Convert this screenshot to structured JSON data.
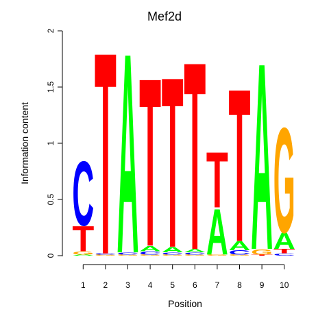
{
  "colors": {
    "A": "#00ff00",
    "C": "#0000ff",
    "G": "#ffa500",
    "T": "#ff0000"
  },
  "chart_data": {
    "type": "sequence-logo",
    "title": "Mef2d",
    "xlabel": "Position",
    "ylabel": "Information content",
    "ylim": [
      0,
      2
    ],
    "y_ticks": [
      "0",
      "0.5",
      "1",
      "1.5",
      "2"
    ],
    "y_tick_values": [
      0,
      0.5,
      1,
      1.5,
      2
    ],
    "x_tick_labels": [
      "1",
      "2",
      "3",
      "4",
      "5",
      "6",
      "7",
      "8",
      "9",
      "10"
    ],
    "grid": false,
    "legend": "none",
    "positions": [
      {
        "position": 1,
        "letters": [
          {
            "base": "A",
            "height": 0.01
          },
          {
            "base": "G",
            "height": 0.03
          },
          {
            "base": "T",
            "height": 0.23
          },
          {
            "base": "C",
            "height": 0.59
          }
        ]
      },
      {
        "position": 2,
        "letters": [
          {
            "base": "G",
            "height": 0.01
          },
          {
            "base": "C",
            "height": 0.01
          },
          {
            "base": "T",
            "height": 1.85
          }
        ]
      },
      {
        "position": 3,
        "letters": [
          {
            "base": "G",
            "height": 0.01
          },
          {
            "base": "C",
            "height": 0.02
          },
          {
            "base": "A",
            "height": 1.83
          }
        ]
      },
      {
        "position": 4,
        "letters": [
          {
            "base": "G",
            "height": 0.01
          },
          {
            "base": "C",
            "height": 0.03
          },
          {
            "base": "A",
            "height": 0.05
          },
          {
            "base": "T",
            "height": 1.54
          }
        ]
      },
      {
        "position": 5,
        "letters": [
          {
            "base": "G",
            "height": 0.01
          },
          {
            "base": "C",
            "height": 0.02
          },
          {
            "base": "A",
            "height": 0.05
          },
          {
            "base": "T",
            "height": 1.56
          }
        ]
      },
      {
        "position": 6,
        "letters": [
          {
            "base": "G",
            "height": 0.01
          },
          {
            "base": "C",
            "height": 0.02
          },
          {
            "base": "A",
            "height": 0.03
          },
          {
            "base": "T",
            "height": 1.72
          }
        ]
      },
      {
        "position": 7,
        "letters": [
          {
            "base": "G",
            "height": 0.01
          },
          {
            "base": "A",
            "height": 0.42
          },
          {
            "base": "T",
            "height": 0.51
          }
        ]
      },
      {
        "position": 8,
        "letters": [
          {
            "base": "G",
            "height": 0.01
          },
          {
            "base": "C",
            "height": 0.04
          },
          {
            "base": "A",
            "height": 0.08
          },
          {
            "base": "T",
            "height": 1.4
          }
        ]
      },
      {
        "position": 9,
        "letters": [
          {
            "base": "T",
            "height": 0.01
          },
          {
            "base": "G",
            "height": 0.05
          },
          {
            "base": "A",
            "height": 1.71
          }
        ]
      },
      {
        "position": 10,
        "letters": [
          {
            "base": "C",
            "height": 0.02
          },
          {
            "base": "T",
            "height": 0.04
          },
          {
            "base": "A",
            "height": 0.15
          },
          {
            "base": "G",
            "height": 0.96
          }
        ]
      }
    ]
  }
}
